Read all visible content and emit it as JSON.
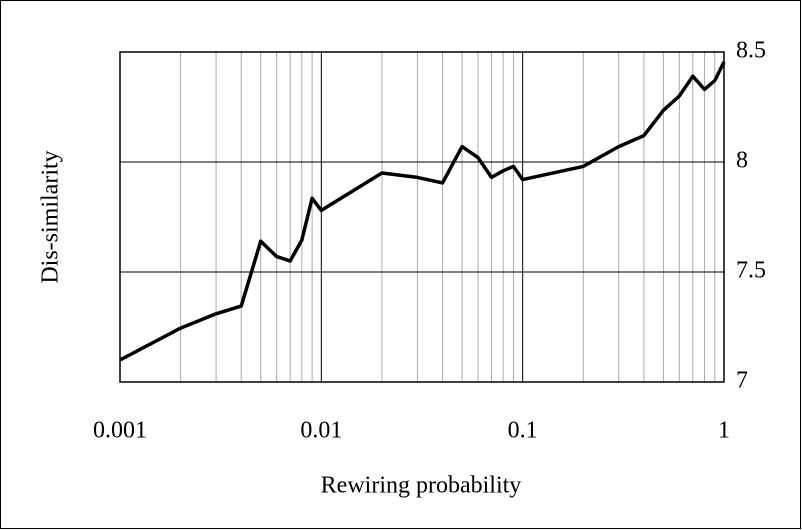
{
  "chart_data": {
    "type": "line",
    "x_label": "Rewiring probability",
    "y_label": "Dis-similarity",
    "x": [
      0.001,
      0.002,
      0.003,
      0.004,
      0.005,
      0.006,
      0.007,
      0.008,
      0.009,
      0.01,
      0.02,
      0.03,
      0.04,
      0.05,
      0.06,
      0.07,
      0.08,
      0.09,
      0.1,
      0.2,
      0.3,
      0.4,
      0.5,
      0.6,
      0.7,
      0.8,
      0.9,
      1
    ],
    "values": [
      7.1,
      7.245,
      7.31,
      7.345,
      7.64,
      7.57,
      7.55,
      7.645,
      7.835,
      7.78,
      7.95,
      7.93,
      7.905,
      8.07,
      8.02,
      7.93,
      7.96,
      7.98,
      7.92,
      7.98,
      8.07,
      8.12,
      8.235,
      8.3,
      8.39,
      8.33,
      8.37,
      8.455
    ],
    "color": "#000000",
    "xlim": [
      0.001,
      1
    ],
    "xticks": [
      0.001,
      0.01,
      0.1,
      1
    ],
    "x_log": true,
    "ylim": [
      7,
      8.5
    ],
    "yticks": [
      7,
      7.5,
      8,
      8.5
    ],
    "grid": true,
    "minor_grid": true,
    "y_axis_side": "right"
  }
}
